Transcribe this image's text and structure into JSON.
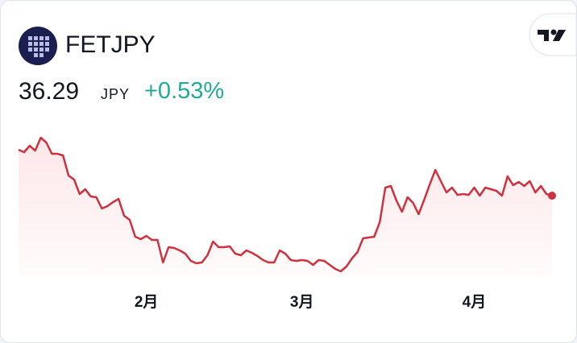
{
  "chart_data": {
    "type": "line",
    "symbol": "FETJPY",
    "price": "36.29",
    "currency": "JPY",
    "change": "+0.53%",
    "categories": [
      null,
      null,
      null,
      null,
      null,
      null,
      null,
      null,
      null,
      null,
      null,
      null,
      null,
      null,
      null,
      null,
      null,
      null,
      null,
      null,
      null,
      null,
      null,
      "2月",
      null,
      null,
      null,
      null,
      null,
      null,
      null,
      null,
      null,
      null,
      null,
      null,
      null,
      null,
      null,
      null,
      null,
      null,
      null,
      null,
      null,
      null,
      null,
      null,
      null,
      null,
      null,
      "3月",
      null,
      null,
      null,
      null,
      null,
      null,
      null,
      null,
      null,
      null,
      null,
      null,
      null,
      null,
      null,
      null,
      null,
      null,
      null,
      null,
      null,
      null,
      null,
      null,
      null,
      null,
      null,
      null,
      null,
      null,
      "4月",
      null,
      null,
      null,
      null,
      null,
      null,
      null,
      null,
      null,
      null,
      null,
      null,
      null,
      null
    ],
    "values": [
      43.13,
      42.77,
      43.73,
      43.01,
      44.93,
      44.21,
      42.53,
      42.53,
      42.29,
      39.29,
      38.69,
      36.53,
      37.25,
      36.17,
      36.05,
      34.37,
      34.73,
      35.33,
      35.81,
      33.29,
      32.69,
      30.17,
      29.81,
      30.29,
      29.69,
      29.69,
      26.33,
      28.61,
      28.49,
      28.13,
      27.65,
      26.57,
      26.21,
      26.33,
      27.41,
      29.45,
      28.61,
      28.61,
      28.73,
      27.65,
      27.41,
      28.13,
      27.77,
      27.29,
      26.69,
      26.33,
      26.33,
      28.13,
      27.65,
      26.69,
      26.57,
      26.69,
      26.57,
      25.97,
      26.69,
      26.57,
      25.97,
      25.37,
      25.01,
      25.73,
      26.93,
      27.89,
      29.93,
      30.05,
      30.17,
      32.33,
      37.49,
      37.73,
      35.57,
      33.89,
      36.05,
      35.21,
      33.53,
      35.69,
      37.97,
      40.13,
      38.45,
      36.77,
      37.49,
      36.41,
      36.53,
      36.41,
      37.49,
      36.29,
      37.49,
      37.25,
      37.01,
      36.29,
      39.17,
      37.85,
      38.33,
      37.73,
      38.45,
      36.77,
      37.73,
      36.53,
      36.29
    ],
    "color": "#d0313f",
    "ylim": [
      24.53,
      47.33
    ]
  }
}
